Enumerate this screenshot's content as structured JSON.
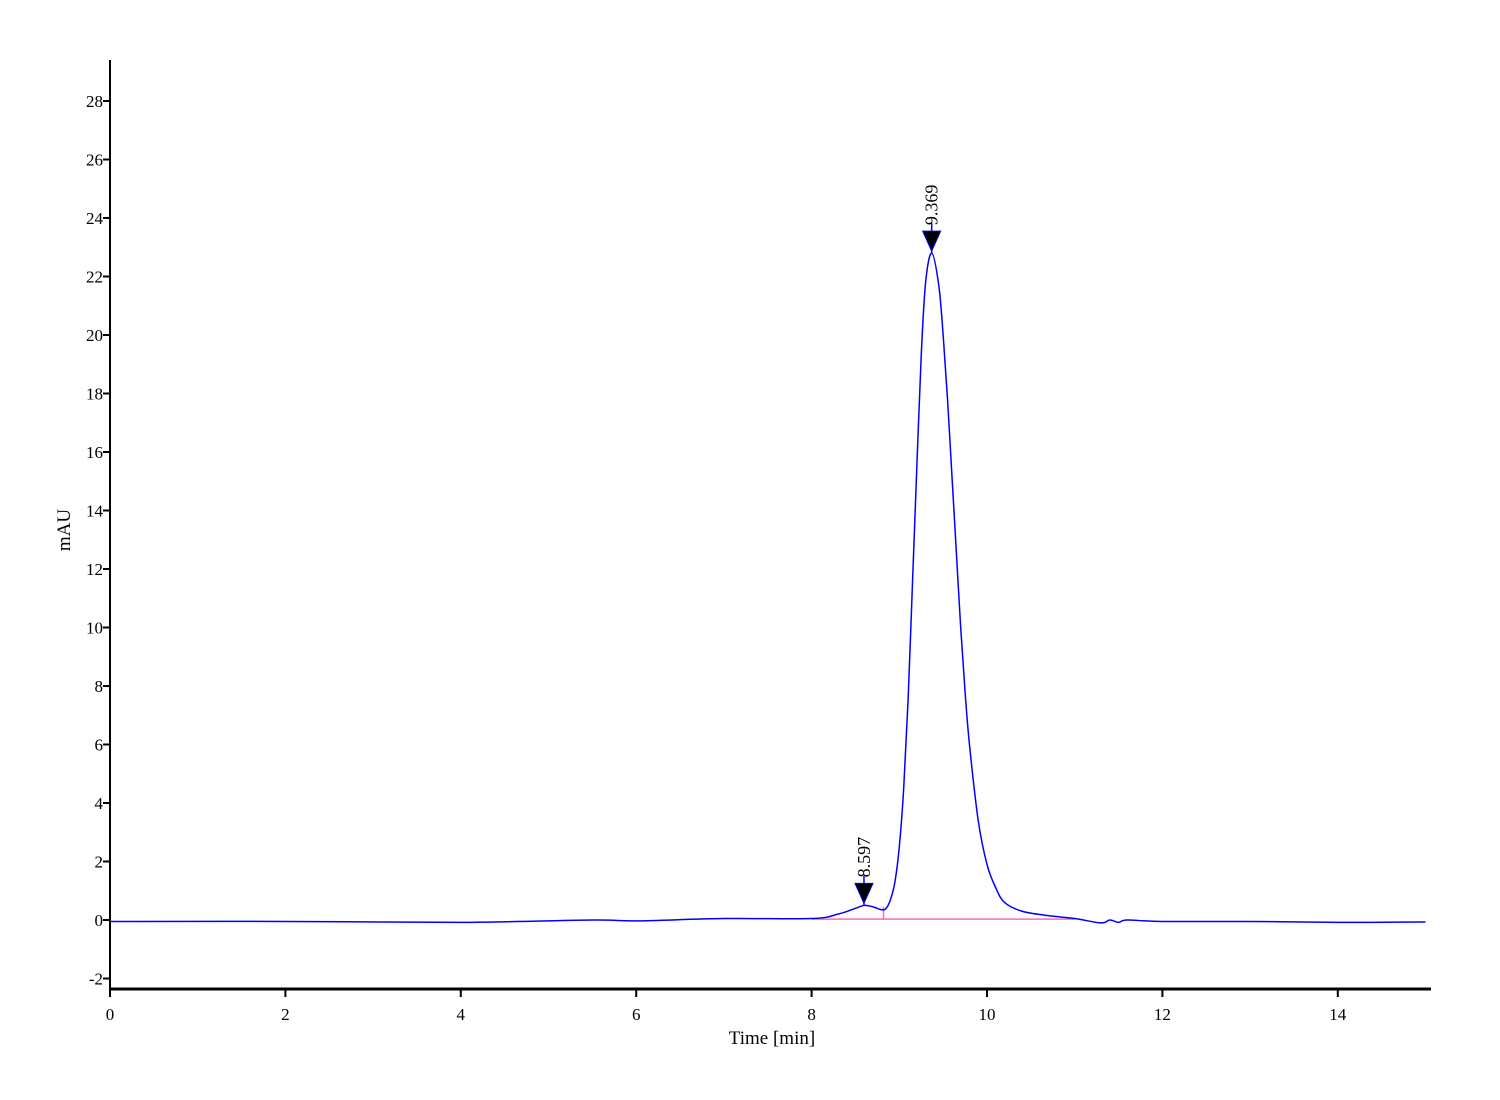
{
  "chart_data": {
    "type": "line",
    "title": "",
    "xlabel": "Time [min]",
    "ylabel": "mAU",
    "xlim": [
      0,
      15
    ],
    "ylim": [
      -2.36,
      29.4
    ],
    "xticks": [
      0,
      2,
      4,
      6,
      8,
      10,
      12,
      14
    ],
    "yticks": [
      -2,
      0,
      2,
      4,
      6,
      8,
      10,
      12,
      14,
      16,
      18,
      20,
      22,
      24,
      26,
      28
    ],
    "grid": false,
    "colors": {
      "signal": "#0000ff",
      "baseline": "#ff69b4",
      "marker": "#000000"
    },
    "series": [
      {
        "x": [
          0,
          2,
          4,
          5.5,
          6,
          7,
          8,
          8.3,
          8.5,
          8.6,
          8.7,
          8.8,
          8.85,
          8.9,
          8.95,
          9.0,
          9.05,
          9.1,
          9.15,
          9.2,
          9.25,
          9.3,
          9.37,
          9.45,
          9.5,
          9.55,
          9.6,
          9.65,
          9.7,
          9.75,
          9.8,
          9.9,
          10.0,
          10.1,
          10.2,
          10.4,
          10.7,
          11.0,
          11.3,
          11.4,
          11.5,
          11.6,
          12,
          13,
          14,
          15
        ],
        "y": [
          -0.05,
          -0.05,
          -0.08,
          0.0,
          -0.03,
          0.05,
          0.05,
          0.2,
          0.4,
          0.5,
          0.45,
          0.35,
          0.4,
          0.7,
          1.3,
          2.5,
          4.5,
          7.5,
          11.5,
          15.5,
          19.3,
          21.8,
          22.8,
          21.7,
          20.0,
          17.8,
          15.2,
          12.6,
          10.0,
          7.8,
          6.0,
          3.4,
          1.9,
          1.1,
          0.6,
          0.3,
          0.15,
          0.05,
          -0.1,
          0.0,
          -0.08,
          0.0,
          -0.05,
          -0.05,
          -0.08,
          -0.07
        ]
      }
    ],
    "integration_baseline": {
      "x": [
        8.0,
        11.0
      ],
      "y": [
        0.03,
        0.03
      ],
      "split_at": 8.82
    },
    "peaks": [
      {
        "label": "8.597",
        "time": 8.597,
        "height": 0.5
      },
      {
        "label": "9.369",
        "time": 9.369,
        "height": 22.8
      }
    ]
  }
}
